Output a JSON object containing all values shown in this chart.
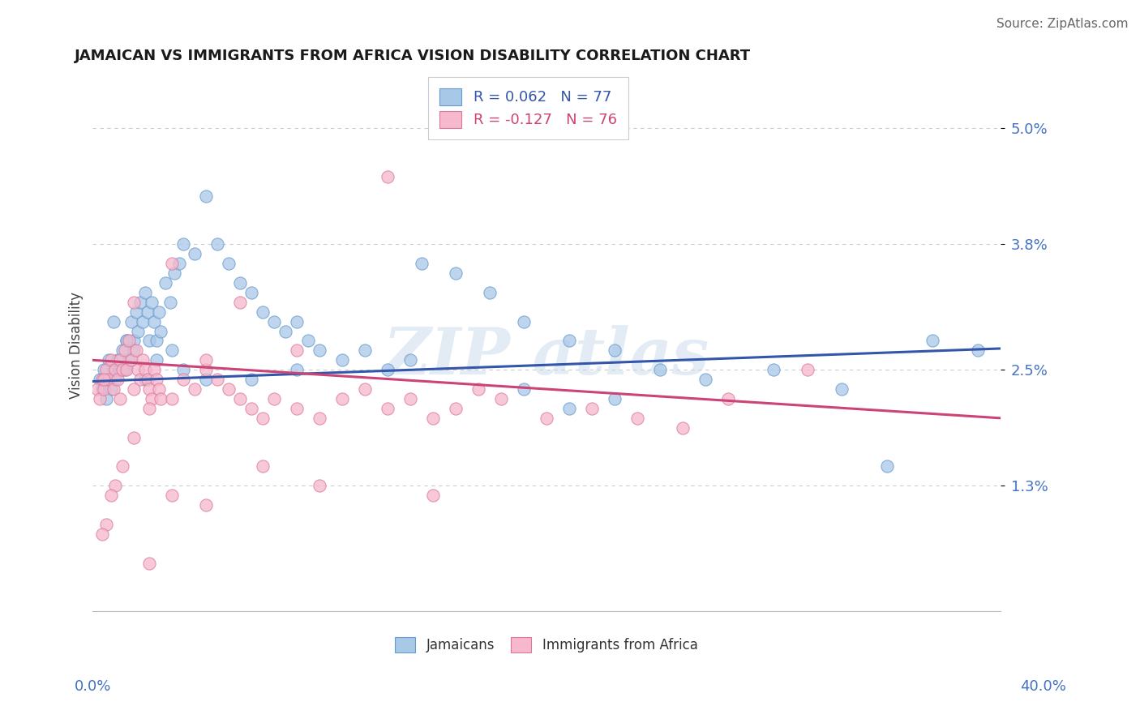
{
  "title": "JAMAICAN VS IMMIGRANTS FROM AFRICA VISION DISABILITY CORRELATION CHART",
  "source": "Source: ZipAtlas.com",
  "ylabel": "Vision Disability",
  "xmin": 0.0,
  "xmax": 40.0,
  "ymin": 0.0,
  "ymax": 5.5,
  "ytick_vals": [
    1.3,
    2.5,
    3.8,
    5.0
  ],
  "title_color": "#1a1a1a",
  "source_color": "#666666",
  "axis_label_color": "#4472C4",
  "grid_color": "#cccccc",
  "background_color": "#ffffff",
  "watermark_text": "ZIP atlas",
  "legend_r1": "0.062",
  "legend_n1": "77",
  "legend_r2": "-0.127",
  "legend_n2": "76",
  "jamaicans_color": "#a8c8e8",
  "jamaicans_edge": "#6699cc",
  "jamaicans_line": "#3355aa",
  "africa_color": "#f5b8cc",
  "africa_edge": "#dd7799",
  "africa_line": "#cc4477",
  "trend_blue_x0": 0.0,
  "trend_blue_y0": 2.38,
  "trend_blue_x1": 40.0,
  "trend_blue_y1": 2.72,
  "trend_pink_x0": 0.0,
  "trend_pink_y0": 2.6,
  "trend_pink_x1": 40.0,
  "trend_pink_y1": 2.0,
  "jamaicans_x": [
    0.3,
    0.4,
    0.5,
    0.6,
    0.7,
    0.8,
    0.9,
    1.0,
    1.1,
    1.2,
    1.3,
    1.4,
    1.5,
    1.6,
    1.7,
    1.8,
    1.9,
    2.0,
    2.1,
    2.2,
    2.3,
    2.4,
    2.5,
    2.6,
    2.7,
    2.8,
    2.9,
    3.0,
    3.2,
    3.4,
    3.6,
    3.8,
    4.0,
    4.5,
    5.0,
    5.5,
    6.0,
    6.5,
    7.0,
    7.5,
    8.0,
    8.5,
    9.0,
    9.5,
    10.0,
    11.0,
    12.0,
    13.0,
    14.5,
    16.0,
    17.5,
    19.0,
    21.0,
    23.0,
    25.0,
    27.0,
    30.0,
    33.0,
    35.0,
    37.0,
    39.0,
    19.0,
    21.0,
    23.0,
    14.0,
    9.0,
    7.0,
    5.0,
    4.0,
    3.5,
    2.8,
    2.3,
    1.8,
    1.5,
    1.2,
    0.9,
    0.6
  ],
  "jamaicans_y": [
    2.4,
    2.3,
    2.5,
    2.4,
    2.6,
    2.3,
    2.5,
    2.4,
    2.6,
    2.5,
    2.7,
    2.5,
    2.8,
    2.6,
    3.0,
    2.8,
    3.1,
    2.9,
    3.2,
    3.0,
    3.3,
    3.1,
    2.8,
    3.2,
    3.0,
    2.8,
    3.1,
    2.9,
    3.4,
    3.2,
    3.5,
    3.6,
    3.8,
    3.7,
    4.3,
    3.8,
    3.6,
    3.4,
    3.3,
    3.1,
    3.0,
    2.9,
    3.0,
    2.8,
    2.7,
    2.6,
    2.7,
    2.5,
    3.6,
    3.5,
    3.3,
    3.0,
    2.8,
    2.7,
    2.5,
    2.4,
    2.5,
    2.3,
    1.5,
    2.8,
    2.7,
    2.3,
    2.1,
    2.2,
    2.6,
    2.5,
    2.4,
    2.4,
    2.5,
    2.7,
    2.6,
    2.4,
    2.7,
    2.8,
    2.5,
    3.0,
    2.2
  ],
  "africa_x": [
    0.2,
    0.3,
    0.4,
    0.5,
    0.6,
    0.7,
    0.8,
    0.9,
    1.0,
    1.1,
    1.2,
    1.3,
    1.4,
    1.5,
    1.6,
    1.7,
    1.8,
    1.9,
    2.0,
    2.1,
    2.2,
    2.3,
    2.4,
    2.5,
    2.6,
    2.7,
    2.8,
    2.9,
    3.0,
    3.5,
    4.0,
    4.5,
    5.0,
    5.5,
    6.0,
    6.5,
    7.0,
    7.5,
    8.0,
    9.0,
    10.0,
    11.0,
    12.0,
    13.0,
    14.0,
    15.0,
    16.0,
    17.0,
    18.0,
    20.0,
    22.0,
    24.0,
    26.0,
    28.0,
    31.5,
    13.0,
    9.0,
    6.5,
    5.0,
    3.5,
    2.5,
    1.8,
    1.3,
    1.0,
    0.8,
    0.6,
    0.4,
    0.5,
    1.2,
    1.8,
    2.5,
    3.5,
    5.0,
    7.5,
    10.0,
    15.0
  ],
  "africa_y": [
    2.3,
    2.2,
    2.4,
    2.3,
    2.5,
    2.4,
    2.6,
    2.3,
    2.5,
    2.4,
    2.6,
    2.5,
    2.7,
    2.5,
    2.8,
    2.6,
    3.2,
    2.7,
    2.5,
    2.4,
    2.6,
    2.5,
    2.4,
    2.3,
    2.2,
    2.5,
    2.4,
    2.3,
    2.2,
    3.6,
    2.4,
    2.3,
    2.5,
    2.4,
    2.3,
    2.2,
    2.1,
    2.0,
    2.2,
    2.1,
    2.0,
    2.2,
    2.3,
    2.1,
    2.2,
    2.0,
    2.1,
    2.3,
    2.2,
    2.0,
    2.1,
    2.0,
    1.9,
    2.2,
    2.5,
    4.5,
    2.7,
    3.2,
    2.6,
    1.2,
    0.5,
    1.8,
    1.5,
    1.3,
    1.2,
    0.9,
    0.8,
    2.4,
    2.2,
    2.3,
    2.1,
    2.2,
    1.1,
    1.5,
    1.3,
    1.2
  ]
}
